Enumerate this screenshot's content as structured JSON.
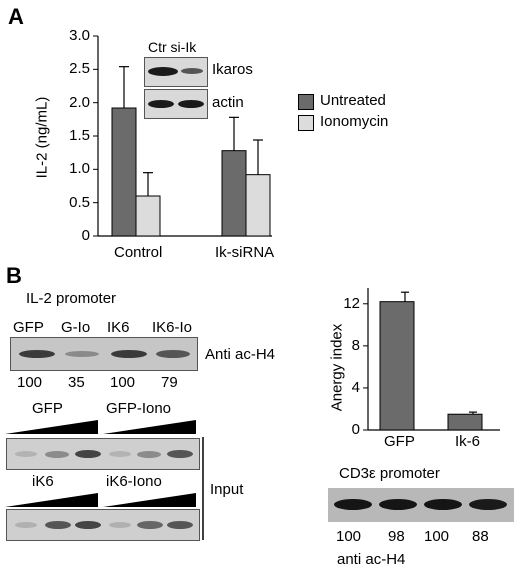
{
  "panel_a": {
    "label": "A",
    "ylabel": "IL-2 (ng/mL)",
    "yticks": [
      "3.0",
      "2.5",
      "2.0",
      "1.5",
      "1.0",
      "0.5",
      "0"
    ],
    "categories": [
      "Control",
      "Ik-siRNA"
    ],
    "legend": [
      {
        "name": "Untreated",
        "color": "#6b6b6b"
      },
      {
        "name": "Ionomycin",
        "color": "#dcdcdc"
      }
    ],
    "inset": {
      "header": "Ctr si-Ik",
      "rows": [
        "Ikaros",
        "actin"
      ]
    }
  },
  "panel_b": {
    "label": "B",
    "promoter_title": "IL-2 promoter",
    "lane_labels": [
      "GFP",
      "G-Io",
      "IK6",
      "IK6-Io"
    ],
    "antibody": "Anti ac-H4",
    "values": [
      "100",
      "35",
      "100",
      "79"
    ],
    "input_row1_labels": [
      "GFP",
      "GFP-Iono"
    ],
    "input_row2_labels": [
      "iK6",
      "iK6-Iono"
    ],
    "input_label": "Input",
    "cd3_title": "CD3ε promoter",
    "cd3_values": [
      "100",
      "98",
      "100",
      "88"
    ],
    "cd3_antibody": "anti ac-H4"
  },
  "chart_data": [
    {
      "type": "bar",
      "categories": [
        "Control",
        "Ik-siRNA"
      ],
      "series": [
        {
          "name": "Untreated",
          "values": [
            1.92,
            1.28
          ],
          "errors": [
            0.62,
            0.5
          ]
        },
        {
          "name": "Ionomycin",
          "values": [
            0.6,
            0.92
          ],
          "errors": [
            0.35,
            0.52
          ]
        }
      ],
      "xlabel": "",
      "ylabel": "IL-2 (ng/mL)",
      "ylim": [
        0,
        3.0
      ]
    },
    {
      "type": "bar",
      "categories": [
        "GFP",
        "Ik-6"
      ],
      "values": [
        12.2,
        1.5
      ],
      "errors": [
        0.9,
        0.2
      ],
      "xlabel": "",
      "ylabel": "Anergy index",
      "ylim": [
        0,
        13.5
      ],
      "yticks": [
        "0",
        "4",
        "8",
        "12"
      ]
    }
  ]
}
